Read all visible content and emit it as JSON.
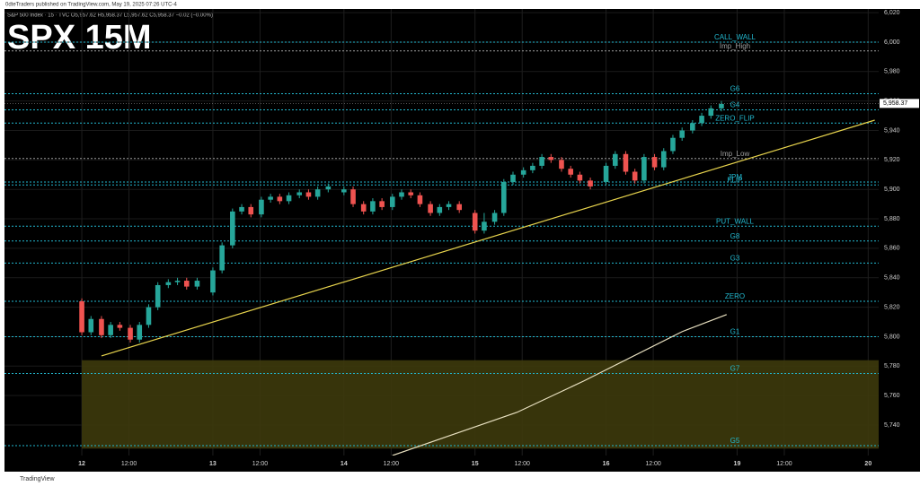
{
  "header": "0dteTraders published on TradingView.com, May 19, 2025 07:26 UTC-4",
  "footer": "TradingView",
  "chart_data": {
    "type": "candlestick",
    "title": "SPX 15M",
    "legend_text": "S&P 500 Index · 15 · TVC   O5,957.62 H5,958.37 L5,957.62 C5,958.37 −0.02 (−0.00%)",
    "up_color": "#26a69a",
    "down_color": "#ef5350",
    "xlim": [
      -0.59,
      6.08
    ],
    "xticks": [
      {
        "value": 0,
        "label": "12"
      },
      {
        "value": 0.36,
        "label": "12:00"
      },
      {
        "value": 1,
        "label": "13"
      },
      {
        "value": 1.36,
        "label": "12:00"
      },
      {
        "value": 2,
        "label": "14"
      },
      {
        "value": 2.36,
        "label": "12:00"
      },
      {
        "value": 3,
        "label": "15"
      },
      {
        "value": 3.36,
        "label": "12:00"
      },
      {
        "value": 4,
        "label": "16"
      },
      {
        "value": 4.36,
        "label": "12:00"
      },
      {
        "value": 5,
        "label": "19"
      },
      {
        "value": 5.36,
        "label": "12:00"
      },
      {
        "value": 6,
        "label": "20"
      }
    ],
    "ylim": [
      5719.3,
      6022.5
    ],
    "yticks": [
      {
        "value": 5740,
        "label": "5,740"
      },
      {
        "value": 5760,
        "label": "5,760"
      },
      {
        "value": 5780,
        "label": "5,780"
      },
      {
        "value": 5800,
        "label": "5,800"
      },
      {
        "value": 5820,
        "label": "5,820"
      },
      {
        "value": 5840,
        "label": "5,840"
      },
      {
        "value": 5860,
        "label": "5,860"
      },
      {
        "value": 5880,
        "label": "5,880"
      },
      {
        "value": 5900,
        "label": "5,900"
      },
      {
        "value": 5920,
        "label": "5,920"
      },
      {
        "value": 5940,
        "label": "5,940"
      },
      {
        "value": 5960,
        "label": "5,960"
      },
      {
        "value": 5980,
        "label": "5,980"
      },
      {
        "value": 6000,
        "label": "6,000"
      },
      {
        "value": 6020,
        "label": "6,020"
      }
    ],
    "grid": true,
    "last_price": {
      "value": 5958.37,
      "label": "5,958.37"
    },
    "x": [
      0,
      0.07,
      0.15,
      0.22,
      0.29,
      0.37,
      0.44,
      0.51,
      0.58,
      0.66,
      0.73,
      0.8,
      0.88,
      1,
      1.07,
      1.15,
      1.22,
      1.29,
      1.37,
      1.44,
      1.51,
      1.58,
      1.66,
      1.73,
      1.8,
      1.88,
      2,
      2.07,
      2.15,
      2.22,
      2.29,
      2.37,
      2.44,
      2.51,
      2.58,
      2.66,
      2.73,
      2.8,
      2.88,
      3,
      3.07,
      3.15,
      3.22,
      3.29,
      3.37,
      3.44,
      3.51,
      3.58,
      3.66,
      3.73,
      3.8,
      3.88,
      4,
      4.07,
      4.15,
      4.22,
      4.29,
      4.37,
      4.44,
      4.51,
      4.58,
      4.66,
      4.73,
      4.8,
      4.88
    ],
    "open": [
      5824,
      5803,
      5812,
      5801,
      5808,
      5806,
      5798,
      5808,
      5820,
      5835,
      5837,
      5838,
      5834,
      5830,
      5845,
      5862,
      5885,
      5888,
      5883,
      5893,
      5895,
      5892,
      5896,
      5898,
      5895,
      5900,
      5898,
      5900,
      5890,
      5885,
      5892,
      5888,
      5895,
      5898,
      5896,
      5890,
      5884,
      5888,
      5890,
      5884,
      5872,
      5878,
      5884,
      5905,
      5910,
      5913,
      5916,
      5922,
      5920,
      5914,
      5910,
      5906,
      5905,
      5916,
      5924,
      5912,
      5906,
      5922,
      5915,
      5926,
      5935,
      5940,
      5945,
      5950,
      5955
    ],
    "high": [
      5826,
      5814,
      5814,
      5810,
      5810,
      5808,
      5810,
      5822,
      5837,
      5839,
      5840,
      5840,
      5840,
      5847,
      5864,
      5887,
      5890,
      5890,
      5895,
      5897,
      5897,
      5898,
      5900,
      5900,
      5902,
      5904,
      5902,
      5902,
      5892,
      5894,
      5894,
      5897,
      5900,
      5900,
      5898,
      5892,
      5890,
      5892,
      5892,
      5886,
      5884,
      5886,
      5907,
      5912,
      5915,
      5918,
      5924,
      5924,
      5922,
      5916,
      5912,
      5908,
      5918,
      5926,
      5926,
      5914,
      5924,
      5924,
      5928,
      5937,
      5942,
      5947,
      5952,
      5957,
      5960
    ],
    "low": [
      5801,
      5801,
      5799,
      5799,
      5804,
      5796,
      5796,
      5806,
      5818,
      5833,
      5835,
      5832,
      5832,
      5828,
      5843,
      5860,
      5883,
      5881,
      5881,
      5891,
      5890,
      5890,
      5894,
      5893,
      5893,
      5898,
      5896,
      5888,
      5883,
      5883,
      5886,
      5886,
      5893,
      5894,
      5888,
      5882,
      5882,
      5886,
      5884,
      5870,
      5870,
      5876,
      5882,
      5903,
      5908,
      5911,
      5914,
      5918,
      5912,
      5908,
      5904,
      5900,
      5903,
      5914,
      5910,
      5904,
      5904,
      5913,
      5913,
      5924,
      5933,
      5938,
      5943,
      5948,
      5953
    ],
    "close": [
      5803,
      5812,
      5801,
      5808,
      5806,
      5798,
      5808,
      5820,
      5835,
      5837,
      5838,
      5834,
      5838,
      5845,
      5862,
      5885,
      5888,
      5883,
      5893,
      5895,
      5892,
      5896,
      5898,
      5895,
      5900,
      5902,
      5900,
      5890,
      5885,
      5892,
      5888,
      5895,
      5898,
      5896,
      5890,
      5884,
      5888,
      5890,
      5886,
      5872,
      5878,
      5884,
      5905,
      5910,
      5913,
      5916,
      5922,
      5920,
      5914,
      5910,
      5906,
      5902,
      5916,
      5924,
      5912,
      5906,
      5922,
      5915,
      5926,
      5935,
      5940,
      5945,
      5950,
      5955,
      5958
    ],
    "levels": [
      {
        "label": "CALL_WALL",
        "value": 6000,
        "color": "#22b8cf"
      },
      {
        "label": "Imp_High",
        "value": 5994,
        "color": "#9e9e9e"
      },
      {
        "label": "G6",
        "value": 5965,
        "color": "#22b8cf"
      },
      {
        "label": "G4",
        "value": 5954,
        "color": "#22b8cf"
      },
      {
        "label": "ZERO_FLIP",
        "value": 5945,
        "color": "#22b8cf"
      },
      {
        "label": "Imp_Low",
        "value": 5921,
        "color": "#9e9e9e"
      },
      {
        "label": "JPM",
        "value": 5905,
        "color": "#22b8cf"
      },
      {
        "label": "FLIP",
        "value": 5903,
        "color": "#22b8cf"
      },
      {
        "label": "PUT_WALL",
        "value": 5875,
        "color": "#22b8cf"
      },
      {
        "label": "G8",
        "value": 5865,
        "color": "#22b8cf"
      },
      {
        "label": "G3",
        "value": 5850,
        "color": "#22b8cf"
      },
      {
        "label": "ZERO",
        "value": 5824,
        "color": "#22b8cf"
      },
      {
        "label": "G1",
        "value": 5800,
        "color": "#22b8cf"
      },
      {
        "label": "G7",
        "value": 5775,
        "color": "#22b8cf"
      },
      {
        "label": "G5",
        "value": 5726,
        "color": "#22b8cf"
      }
    ],
    "zone": {
      "from": 5724,
      "to": 5784,
      "color": "#3d3a0c"
    },
    "trendline": {
      "x": [
        0.15,
        6.05
      ],
      "y": [
        5786.9,
        5947
      ],
      "color": "#e8d44d"
    },
    "curve": {
      "x": [
        2.37,
        3.32,
        3.83,
        4.58,
        4.92
      ],
      "y": [
        5719.3,
        5748.6,
        5769.9,
        5803.4,
        5815
      ],
      "color": "#e8e0c0"
    }
  }
}
